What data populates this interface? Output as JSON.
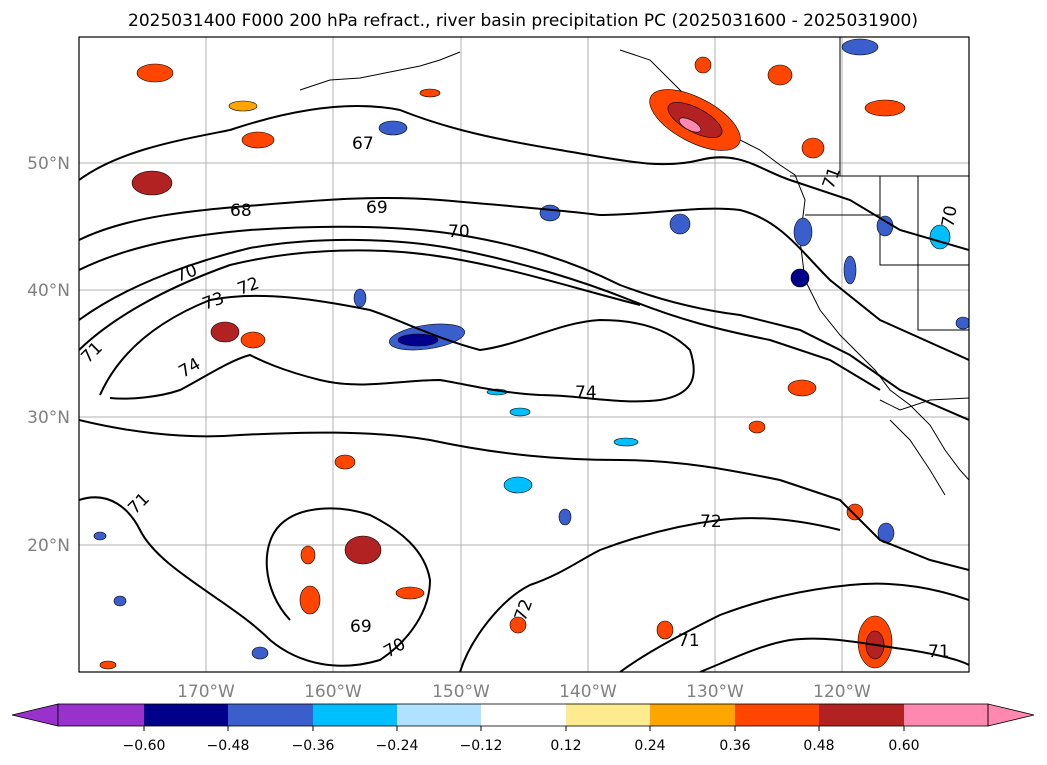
{
  "title": "2025031400 F000 200 hPa refract., river basin precipitation PC (2025031600 - 2025031900)",
  "map": {
    "lat_labels": [
      "50°N",
      "40°N",
      "30°N",
      "20°N"
    ],
    "lon_labels": [
      "170°W",
      "160°W",
      "150°W",
      "140°W",
      "130°W",
      "120°W"
    ],
    "gridlines": true,
    "contour_labels": [
      "67",
      "68",
      "69",
      "70",
      "70",
      "72",
      "73",
      "71",
      "74",
      "74",
      "71",
      "72",
      "72",
      "69",
      "70",
      "71",
      "71",
      "71",
      "70"
    ]
  },
  "colorbar": {
    "ticks": [
      "−0.60",
      "−0.48",
      "−0.36",
      "−0.24",
      "−0.12",
      "0.12",
      "0.24",
      "0.36",
      "0.48",
      "0.60"
    ],
    "colors": [
      "#9932cc",
      "#00008b",
      "#3a5fcd",
      "#00bfff",
      "#b0e2ff",
      "#ffffff",
      "#ffeb8f",
      "#ffa500",
      "#ff4500",
      "#b22222",
      "#ff88b0"
    ]
  },
  "colors": {
    "accent_blue": "#1f6fd1",
    "accent_red": "#e0301e",
    "contour": "#000000",
    "axis_text": "#808080"
  }
}
